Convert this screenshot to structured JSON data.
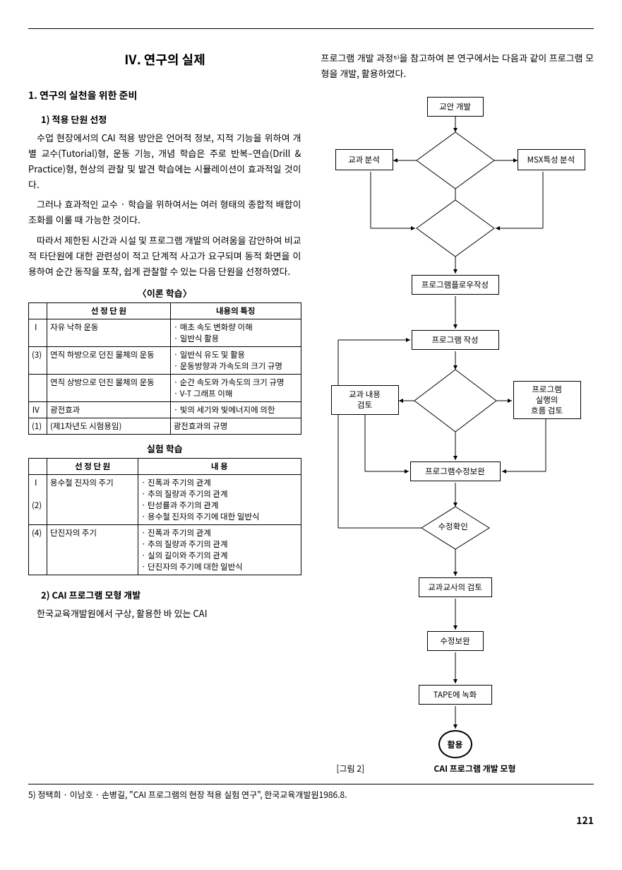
{
  "section_title": "Ⅳ. 연구의 실제",
  "sub1": "1. 연구의 실천을 위한 준비",
  "sub1_1": "1) 적용 단원 선정",
  "para1": "수업 현장에서의 CAI 적용 방안은 언어적 정보, 지적 기능을 위하여 개별 교수(Tutorial)형, 운동 기능, 개념 학습은 주로 반복–연습(Drill & Practice)형, 현상의 관찰 및 발견 학습에는 시뮬레이션이 효과적일 것이다.",
  "para2": "그러나 효과적인 교수 · 학습을 위하여서는 여러 형태의 종합적 배합이 조화를 이룰 때 가능한 것이다.",
  "para3": "따라서 제한된 시간과 시설 및 프로그램 개발의 어려움을 감안하여 비교적 타단원에 대한 관련성이 적고 단계적 사고가 요구되며 동적 화면을 이용하여 순간 동작을 포착, 쉽게 관찰할 수 있는 다음 단원을 선정하였다.",
  "table1_caption": "〈이론 학습〉",
  "table1": {
    "headers": [
      "",
      "선 정 단 원",
      "내용의 특징"
    ],
    "rows": [
      {
        "num": "Ⅰ",
        "unit": "자유 낙하 운동",
        "desc": "· 매초 속도 변화량 이해\n· 일반식 활용"
      },
      {
        "num": "(3)",
        "unit": "연직 하방으로 던진 물체의 운동",
        "desc": "· 일반식 유도 및 활용\n· 운동방향과 가속도의 크기 규명"
      },
      {
        "num": "",
        "unit": "연직 상방으로 던진 물체의 운동",
        "desc": "· 순간 속도와 가속도의 크기 규명\n· V-T 그래프 이해"
      },
      {
        "num": "Ⅳ",
        "unit": "광전효과",
        "desc": "· 빛의 세기와 빛에너지에 의한"
      },
      {
        "num": "(1)",
        "unit": "(제1차년도 시험용임)",
        "desc": "  광전효과의 규명"
      }
    ]
  },
  "table2_caption": "실험 학습",
  "table2": {
    "headers": [
      "",
      "선 정 단 원",
      "내        용"
    ],
    "rows": [
      {
        "num": "Ⅰ\n\n(2)",
        "unit": "용수철 진자의 주기",
        "desc": "· 진폭과 주기의 관계\n· 추의 질량과 주기의 관계\n· 탄성률과 주기의 관계\n· 용수철 진자의 주기에 대한 일반식"
      },
      {
        "num": "(4)",
        "unit": "단진자의 주기",
        "desc": "· 진폭과 주기의 관계\n· 추의 질량과 주기의 관계\n· 실의 길이와 주기의 관계\n· 단진자의 주기에 대한 일반식"
      }
    ]
  },
  "sub1_2": "2) CAI 프로그램 모형 개발",
  "para4": "한국교육개발원에서 구상, 활용한 바 있는 CAI",
  "right_intro": "프로그램 개발 과정⁵⁾을 참고하여 본 연구에서는 다음과 같이 프로그램 모형을 개발, 활용하였다.",
  "flow": {
    "n1": "교안 개발",
    "n2": "교과 분석",
    "n3": "MSX특성 분석",
    "n4": "프로그램플로우작성",
    "n5": "프로그램 작성",
    "n6": "교과 내용\n검토",
    "n7": "프로그램\n실행의\n흐름 검토",
    "n8": "프로그램수정보완",
    "n9": "수정확인",
    "n10": "교과교사의 검토",
    "n11": "수정보완",
    "n12": "TAPE에 녹화",
    "n13": "활용"
  },
  "fig_label": "[그림 2]",
  "fig_caption": "CAI 프로그램 개발 모형",
  "footnote": "5) 정택희 · 이남호 · 손병길, \"CAI 프로그램의 현장 적용 실험 연구\", 한국교육개발원1986.8.",
  "pagenum": "121"
}
